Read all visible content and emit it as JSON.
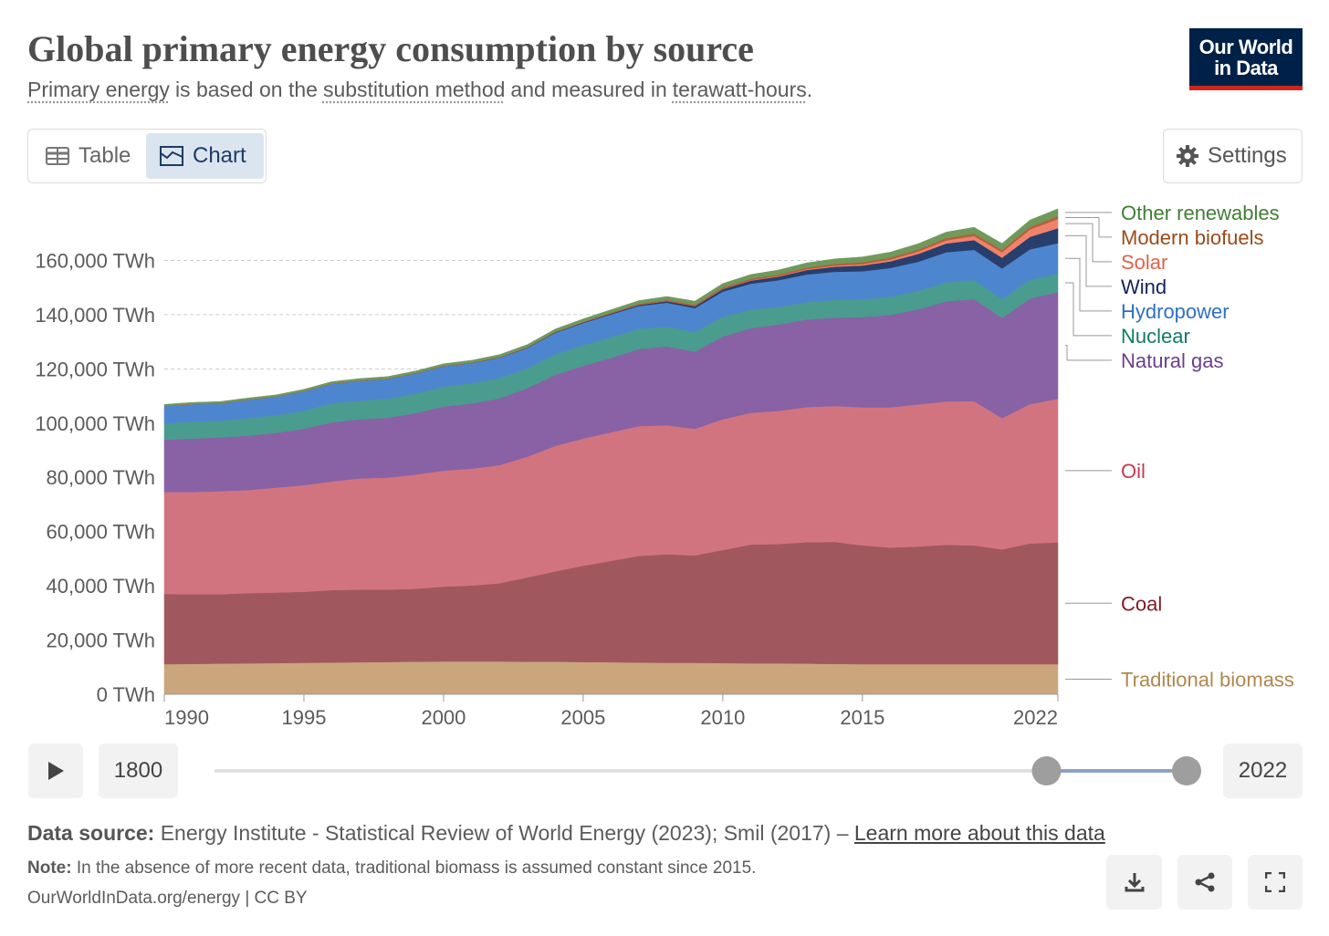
{
  "header": {
    "title": "Global primary energy consumption by source",
    "subtitle": [
      {
        "text": "Primary energy",
        "underline": true
      },
      {
        "text": "is based on the",
        "underline": false
      },
      {
        "text": "substitution method",
        "underline": true
      },
      {
        "text": "and measured in",
        "underline": false
      },
      {
        "text": "terawatt-hours",
        "underline": true
      },
      {
        "text": ".",
        "underline": false
      }
    ],
    "logo": [
      "Our World",
      "in Data"
    ]
  },
  "controls": {
    "tabs": [
      "Table",
      "Chart"
    ],
    "active_tab": 1,
    "settings": "Settings"
  },
  "chart_data": {
    "type": "area",
    "stacked": true,
    "x": [
      1990,
      1991,
      1992,
      1993,
      1994,
      1995,
      1996,
      1997,
      1998,
      1999,
      2000,
      2001,
      2002,
      2003,
      2004,
      2005,
      2006,
      2007,
      2008,
      2009,
      2010,
      2011,
      2012,
      2013,
      2014,
      2015,
      2016,
      2017,
      2018,
      2019,
      2020,
      2021,
      2022
    ],
    "xlim": [
      1990,
      2022
    ],
    "xticks": [
      1990,
      1995,
      2000,
      2005,
      2010,
      2015,
      2022
    ],
    "ylim": [
      0,
      180000
    ],
    "yticks": [
      {
        "value": 0,
        "label": "0 TWh"
      },
      {
        "value": 20000,
        "label": "20,000 TWh"
      },
      {
        "value": 40000,
        "label": "40,000 TWh"
      },
      {
        "value": 60000,
        "label": "60,000 TWh"
      },
      {
        "value": 80000,
        "label": "80,000 TWh"
      },
      {
        "value": 100000,
        "label": "100,000 TWh"
      },
      {
        "value": 120000,
        "label": "120,000 TWh"
      },
      {
        "value": 140000,
        "label": "140,000 TWh"
      },
      {
        "value": 160000,
        "label": "160,000 TWh"
      }
    ],
    "grid": true,
    "series": [
      {
        "name": "Traditional biomass",
        "color": "#cba67c",
        "label_color": "#b0874c",
        "values": [
          11100,
          11200,
          11300,
          11400,
          11500,
          11600,
          11700,
          11800,
          11900,
          12000,
          12100,
          12100,
          12100,
          12000,
          12000,
          11900,
          11800,
          11700,
          11600,
          11600,
          11500,
          11400,
          11400,
          11300,
          11200,
          11100,
          11100,
          11100,
          11100,
          11100,
          11100,
          11100,
          11100
        ]
      },
      {
        "name": "Coal",
        "color": "#a0585e",
        "label_color": "#7d1b28",
        "values": [
          25900,
          25700,
          25600,
          25900,
          26000,
          26200,
          26700,
          26800,
          26700,
          26900,
          27600,
          28000,
          28800,
          31100,
          33300,
          35500,
          37400,
          39300,
          40000,
          39600,
          41700,
          43800,
          44000,
          44800,
          45000,
          43800,
          43000,
          43400,
          44000,
          43800,
          42300,
          44500,
          44900
        ]
      },
      {
        "name": "Oil",
        "color": "#d27480",
        "label_color": "#c8384f",
        "values": [
          37600,
          37700,
          38000,
          38000,
          38700,
          39300,
          40100,
          41000,
          41300,
          42100,
          42800,
          43100,
          43600,
          44500,
          46300,
          46900,
          47400,
          47900,
          47600,
          46700,
          48200,
          48600,
          49100,
          49800,
          50100,
          50900,
          51700,
          52400,
          52900,
          53200,
          48400,
          51400,
          52970
        ]
      },
      {
        "name": "Natural gas",
        "color": "#8862a5",
        "label_color": "#6b3f8c",
        "values": [
          19300,
          19700,
          19800,
          20100,
          20200,
          20800,
          21800,
          21800,
          22100,
          22700,
          23600,
          24000,
          24600,
          25300,
          26200,
          26800,
          27500,
          28400,
          29100,
          28500,
          30500,
          31200,
          31900,
          32300,
          32600,
          33300,
          34100,
          35100,
          36900,
          37600,
          37000,
          38900,
          39400
        ]
      },
      {
        "name": "Nuclear",
        "color": "#4a9c8e",
        "label_color": "#12796b",
        "values": [
          6000,
          6200,
          6200,
          6400,
          6500,
          6700,
          7000,
          6900,
          7000,
          7200,
          7300,
          7500,
          7500,
          7300,
          7600,
          7600,
          7600,
          7400,
          7300,
          7200,
          7300,
          6900,
          6400,
          6400,
          6500,
          6600,
          6700,
          6800,
          7000,
          7100,
          6800,
          7000,
          6700
        ]
      },
      {
        "name": "Hydropower",
        "color": "#4d86cf",
        "label_color": "#2e6fc9",
        "values": [
          6400,
          6500,
          6400,
          6800,
          6800,
          7100,
          7200,
          7300,
          7300,
          7400,
          7500,
          7400,
          7500,
          7500,
          7900,
          8200,
          8400,
          8500,
          8800,
          8800,
          9300,
          9500,
          9900,
          10200,
          10400,
          10300,
          10600,
          10700,
          11100,
          11100,
          11400,
          11200,
          11300
        ]
      },
      {
        "name": "Wind",
        "color": "#283e6d",
        "label_color": "#13245e",
        "values": [
          10,
          10,
          10,
          10,
          20,
          20,
          30,
          30,
          40,
          60,
          80,
          100,
          130,
          170,
          220,
          280,
          350,
          450,
          580,
          720,
          920,
          1150,
          1360,
          1640,
          1860,
          2140,
          2460,
          2900,
          3240,
          3600,
          4000,
          4600,
          5500
        ]
      },
      {
        "name": "Solar",
        "color": "#f0826c",
        "label_color": "#e0634a",
        "values": [
          1,
          1,
          1,
          1,
          1,
          1,
          1,
          1,
          1,
          2,
          2,
          3,
          3,
          4,
          6,
          8,
          11,
          16,
          25,
          42,
          67,
          130,
          200,
          280,
          380,
          500,
          650,
          890,
          1150,
          1500,
          2000,
          2700,
          3400
        ]
      },
      {
        "name": "Modern biofuels",
        "color": "#b5603a",
        "label_color": "#9a4a1c",
        "values": [
          100,
          100,
          100,
          100,
          110,
          120,
          120,
          120,
          120,
          120,
          130,
          130,
          150,
          180,
          200,
          230,
          290,
          380,
          480,
          520,
          590,
          620,
          620,
          660,
          710,
          740,
          750,
          780,
          860,
          920,
          850,
          950,
          1050
        ]
      },
      {
        "name": "Other renewables",
        "color": "#6f9a5c",
        "label_color": "#3f7f33",
        "values": [
          500,
          520,
          540,
          560,
          580,
          620,
          650,
          680,
          700,
          740,
          780,
          820,
          860,
          900,
          960,
          1020,
          1080,
          1140,
          1220,
          1300,
          1400,
          1500,
          1600,
          1700,
          1800,
          1900,
          2000,
          2100,
          2200,
          2300,
          2400,
          2550,
          2700
        ]
      }
    ]
  },
  "timeline": {
    "min": 1800,
    "max": 2022
  },
  "footer": {
    "source_label": "Data source:",
    "source": "Energy Institute - Statistical Review of World Energy (2023); Smil (2017) –",
    "source_link": "Learn more about this data",
    "note_label": "Note:",
    "note": "In the absence of more recent data, traditional biomass is assumed constant since 2015.",
    "credit": "OurWorldInData.org/energy | CC BY"
  }
}
